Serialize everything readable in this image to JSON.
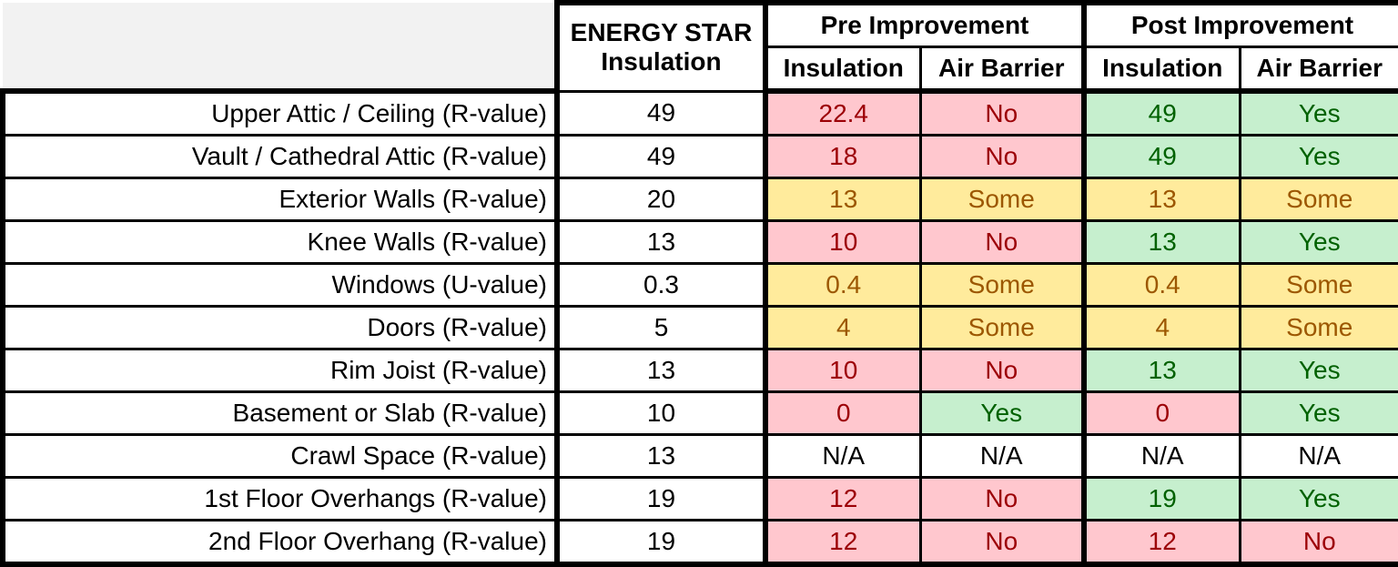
{
  "chart_data": {
    "type": "table",
    "headers": {
      "energy_star": "ENERGY STAR Insulation",
      "energy_star_line1": "ENERGY STAR",
      "energy_star_line2": "Insulation",
      "pre": "Pre Improvement",
      "post": "Post Improvement",
      "insulation": "Insulation",
      "air_barrier": "Air Barrier"
    },
    "status_colors": {
      "bad": {
        "bg": "#ffc7ce",
        "text": "#9c0006"
      },
      "some": {
        "bg": "#ffeb9c",
        "text": "#9c5700"
      },
      "good": {
        "bg": "#c6efce",
        "text": "#006100"
      },
      "none": {
        "bg": "#ffffff",
        "text": "#000000"
      }
    },
    "rows": [
      {
        "label": "Upper Attic / Ceiling (R-value)",
        "energy_star": "49",
        "pre_ins": "22.4",
        "pre_ins_s": "bad",
        "pre_air": "No",
        "pre_air_s": "bad",
        "post_ins": "49",
        "post_ins_s": "good",
        "post_air": "Yes",
        "post_air_s": "good"
      },
      {
        "label": "Vault / Cathedral Attic (R-value)",
        "energy_star": "49",
        "pre_ins": "18",
        "pre_ins_s": "bad",
        "pre_air": "No",
        "pre_air_s": "bad",
        "post_ins": "49",
        "post_ins_s": "good",
        "post_air": "Yes",
        "post_air_s": "good"
      },
      {
        "label": "Exterior Walls (R-value)",
        "energy_star": "20",
        "pre_ins": "13",
        "pre_ins_s": "some",
        "pre_air": "Some",
        "pre_air_s": "some",
        "post_ins": "13",
        "post_ins_s": "some",
        "post_air": "Some",
        "post_air_s": "some"
      },
      {
        "label": "Knee Walls (R-value)",
        "energy_star": "13",
        "pre_ins": "10",
        "pre_ins_s": "bad",
        "pre_air": "No",
        "pre_air_s": "bad",
        "post_ins": "13",
        "post_ins_s": "good",
        "post_air": "Yes",
        "post_air_s": "good"
      },
      {
        "label": "Windows (U-value)",
        "energy_star": "0.3",
        "pre_ins": "0.4",
        "pre_ins_s": "some",
        "pre_air": "Some",
        "pre_air_s": "some",
        "post_ins": "0.4",
        "post_ins_s": "some",
        "post_air": "Some",
        "post_air_s": "some"
      },
      {
        "label": "Doors (R-value)",
        "energy_star": "5",
        "pre_ins": "4",
        "pre_ins_s": "some",
        "pre_air": "Some",
        "pre_air_s": "some",
        "post_ins": "4",
        "post_ins_s": "some",
        "post_air": "Some",
        "post_air_s": "some"
      },
      {
        "label": "Rim Joist (R-value)",
        "energy_star": "13",
        "pre_ins": "10",
        "pre_ins_s": "bad",
        "pre_air": "No",
        "pre_air_s": "bad",
        "post_ins": "13",
        "post_ins_s": "good",
        "post_air": "Yes",
        "post_air_s": "good"
      },
      {
        "label": "Basement or Slab (R-value)",
        "energy_star": "10",
        "pre_ins": "0",
        "pre_ins_s": "bad",
        "pre_air": "Yes",
        "pre_air_s": "good",
        "post_ins": "0",
        "post_ins_s": "bad",
        "post_air": "Yes",
        "post_air_s": "good"
      },
      {
        "label": "Crawl Space (R-value)",
        "energy_star": "13",
        "pre_ins": "N/A",
        "pre_ins_s": "none",
        "pre_air": "N/A",
        "pre_air_s": "none",
        "post_ins": "N/A",
        "post_ins_s": "none",
        "post_air": "N/A",
        "post_air_s": "none"
      },
      {
        "label": "1st Floor Overhangs (R-value)",
        "energy_star": "19",
        "pre_ins": "12",
        "pre_ins_s": "bad",
        "pre_air": "No",
        "pre_air_s": "bad",
        "post_ins": "19",
        "post_ins_s": "good",
        "post_air": "Yes",
        "post_air_s": "good"
      },
      {
        "label": "2nd Floor Overhang (R-value)",
        "energy_star": "19",
        "pre_ins": "12",
        "pre_ins_s": "bad",
        "pre_air": "No",
        "pre_air_s": "bad",
        "post_ins": "12",
        "post_ins_s": "bad",
        "post_air": "No",
        "post_air_s": "bad"
      }
    ]
  }
}
